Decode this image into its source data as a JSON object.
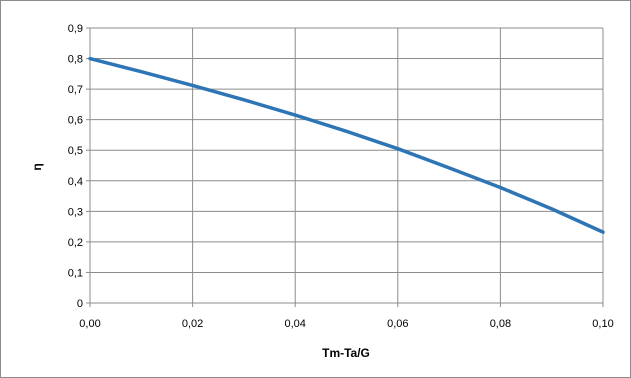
{
  "chart_data": {
    "type": "line",
    "title": "",
    "xlabel": "Tm-Ta/G",
    "ylabel": "η",
    "xlim": [
      0.0,
      0.1
    ],
    "ylim": [
      0.0,
      0.9
    ],
    "x_ticks": [
      "0,00",
      "0,02",
      "0,04",
      "0,06",
      "0,08",
      "0,10"
    ],
    "y_ticks": [
      "0",
      "0,1",
      "0,2",
      "0,3",
      "0,4",
      "0,5",
      "0,6",
      "0,7",
      "0,8",
      "0,9"
    ],
    "grid": true,
    "legend": "none",
    "series": [
      {
        "color": "#2e75b6",
        "x": [
          0.0,
          0.01,
          0.02,
          0.03,
          0.04,
          0.05,
          0.06,
          0.07,
          0.08,
          0.09,
          0.1
        ],
        "y": [
          0.8,
          0.757,
          0.712,
          0.665,
          0.615,
          0.562,
          0.505,
          0.442,
          0.378,
          0.308,
          0.232
        ]
      }
    ]
  }
}
